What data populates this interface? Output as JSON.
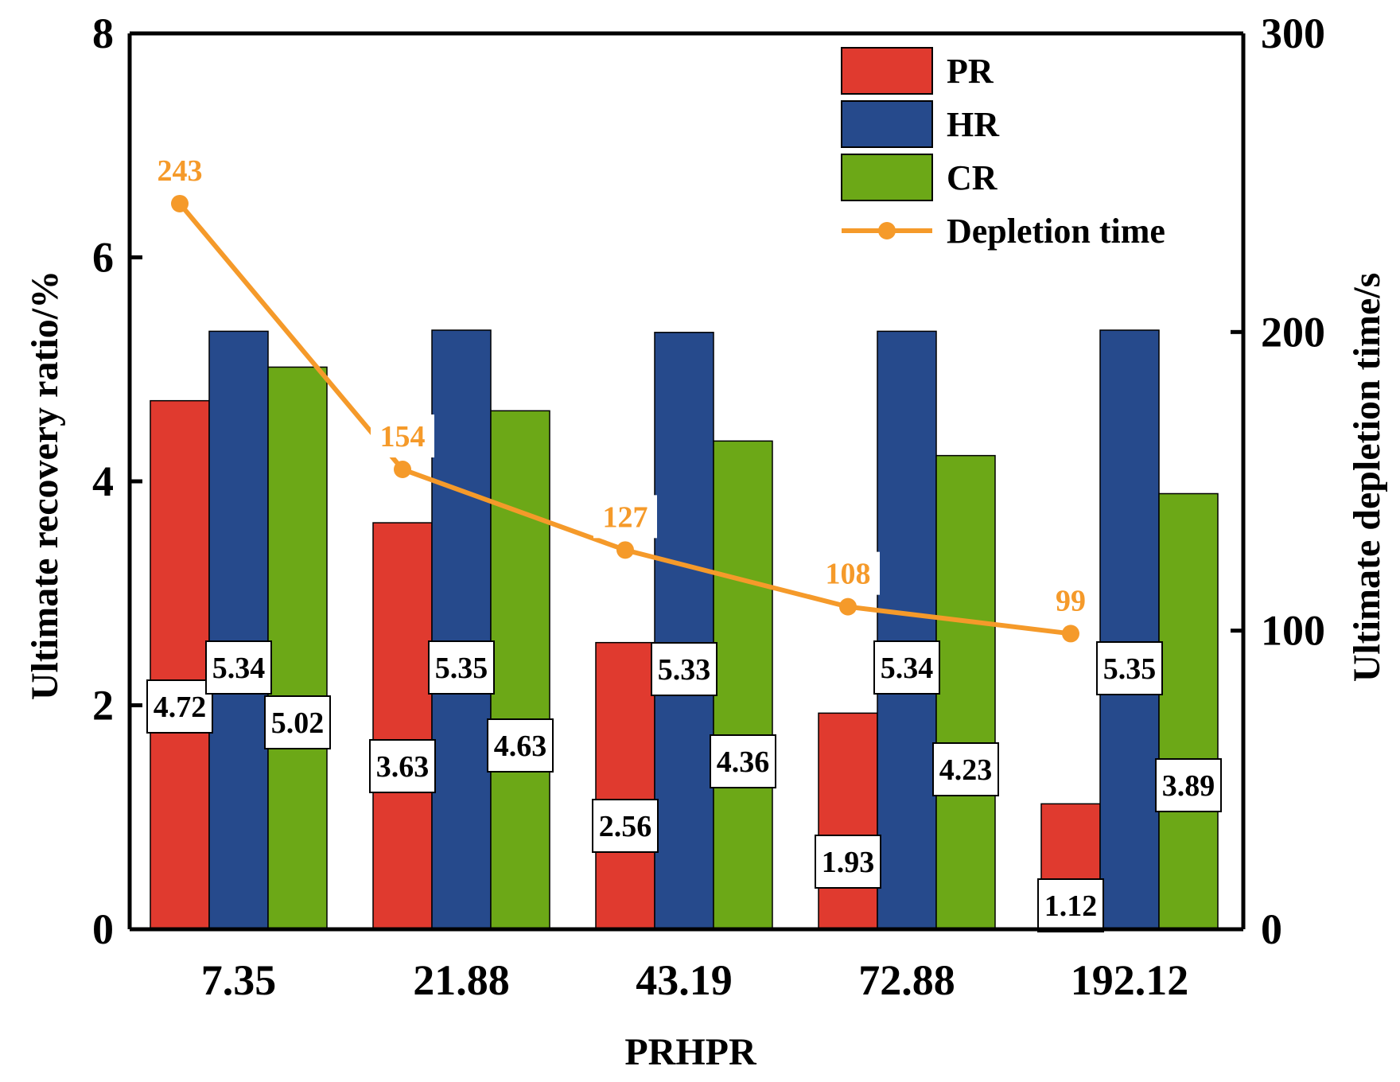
{
  "chart_data": {
    "type": "bar",
    "categories": [
      "7.35",
      "21.88",
      "43.19",
      "72.88",
      "192.12"
    ],
    "xlabel": "PRHPR",
    "ylabel": "Ultimate recovery ratio/%",
    "y2label": "Ultimate depletion time/s",
    "ylim": [
      0,
      8
    ],
    "y2lim": [
      0,
      300
    ],
    "yticks": [
      "0",
      "2",
      "4",
      "6",
      "8"
    ],
    "y2ticks": [
      "0",
      "100",
      "200",
      "300"
    ],
    "grid": false,
    "legend_position": "top-right",
    "series": [
      {
        "name": "PR",
        "type": "bar",
        "axis": "left",
        "color": "#e03a2f",
        "values": [
          4.72,
          3.63,
          2.56,
          1.93,
          1.12
        ],
        "labels": [
          "4.72",
          "3.63",
          "2.56",
          "1.93",
          "1.12"
        ]
      },
      {
        "name": "HR",
        "type": "bar",
        "axis": "left",
        "color": "#264a8c",
        "values": [
          5.34,
          5.35,
          5.33,
          5.34,
          5.35
        ],
        "labels": [
          "5.34",
          "5.35",
          "5.33",
          "5.34",
          "5.35"
        ]
      },
      {
        "name": "CR",
        "type": "bar",
        "axis": "left",
        "color": "#6ca817",
        "values": [
          5.02,
          4.63,
          4.36,
          4.23,
          3.89
        ],
        "labels": [
          "5.02",
          "4.63",
          "4.36",
          "4.23",
          "3.89"
        ]
      },
      {
        "name": "Depletion time",
        "type": "line",
        "axis": "right",
        "color": "#f59a2a",
        "values": [
          243,
          154,
          127,
          108,
          99
        ],
        "labels": [
          "243",
          "154",
          "127",
          "108",
          "99"
        ]
      }
    ]
  }
}
